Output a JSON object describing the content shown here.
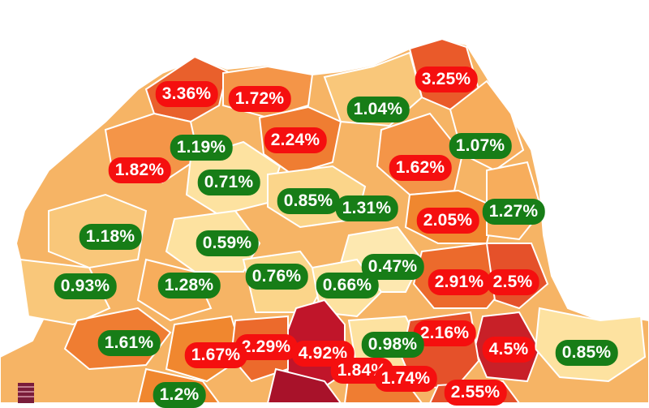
{
  "legend": {
    "swatch_color": "#7a1c3a"
  },
  "colors": {
    "low": "#fde2a0",
    "mid_low": "#f9bd6c",
    "mid": "#f4a04a",
    "mid_high": "#ef7d32",
    "high": "#e34a26",
    "very_high": "#c0152a",
    "badge_increase": "#f50f0f",
    "badge_decrease": "#177d17"
  },
  "labels": [
    {
      "text": "3.36%",
      "status": "high"
    },
    {
      "text": "1.72%",
      "status": "high"
    },
    {
      "text": "3.25%",
      "status": "high"
    },
    {
      "text": "1.04%",
      "status": "low"
    },
    {
      "text": "1.19%",
      "status": "low"
    },
    {
      "text": "2.24%",
      "status": "high"
    },
    {
      "text": "1.07%",
      "status": "low"
    },
    {
      "text": "1.82%",
      "status": "high"
    },
    {
      "text": "0.71%",
      "status": "low"
    },
    {
      "text": "1.62%",
      "status": "high"
    },
    {
      "text": "0.85%",
      "status": "low"
    },
    {
      "text": "1.31%",
      "status": "low"
    },
    {
      "text": "2.05%",
      "status": "high"
    },
    {
      "text": "1.27%",
      "status": "low"
    },
    {
      "text": "1.18%",
      "status": "low"
    },
    {
      "text": "0.59%",
      "status": "low"
    },
    {
      "text": "0.47%",
      "status": "low"
    },
    {
      "text": "0.93%",
      "status": "low"
    },
    {
      "text": "1.28%",
      "status": "low"
    },
    {
      "text": "0.76%",
      "status": "low"
    },
    {
      "text": "0.66%",
      "status": "low"
    },
    {
      "text": "2.91%",
      "status": "high"
    },
    {
      "text": "2.5%",
      "status": "high"
    },
    {
      "text": "1.61%",
      "status": "low"
    },
    {
      "text": "2.16%",
      "status": "high"
    },
    {
      "text": "2.29%",
      "status": "high"
    },
    {
      "text": "4.92%",
      "status": "high"
    },
    {
      "text": "0.98%",
      "status": "low"
    },
    {
      "text": "1.67%",
      "status": "high"
    },
    {
      "text": "4.5%",
      "status": "high"
    },
    {
      "text": "0.85%",
      "status": "low"
    },
    {
      "text": "1.84%",
      "status": "high"
    },
    {
      "text": "1.74%",
      "status": "high"
    },
    {
      "text": "2.55%",
      "status": "high"
    },
    {
      "text": "1.2%",
      "status": "low"
    }
  ]
}
